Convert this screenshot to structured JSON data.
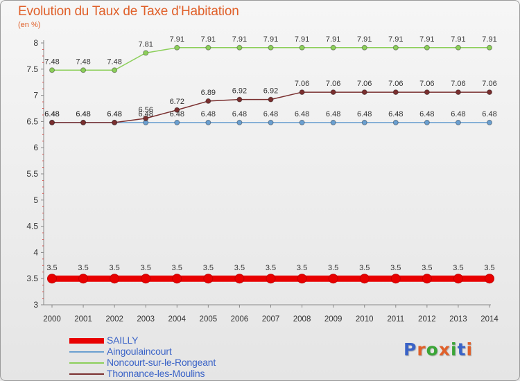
{
  "header": {
    "title": "Evolution du Taux de Taxe d'Habitation",
    "unit": "(en %)"
  },
  "logo": {
    "text": "Proxiti",
    "letter_colors": [
      "#3a63c7",
      "#e0602a",
      "#3aa537",
      "#e0602a",
      "#3aa537",
      "#3a63c7",
      "#e0602a"
    ]
  },
  "chart_data": {
    "type": "line",
    "title": "Evolution du Taux de Taxe d'Habitation",
    "ylabel": "(en %)",
    "xlabel": "",
    "x": [
      "2000",
      "2001",
      "2002",
      "2003",
      "2004",
      "2005",
      "2006",
      "2007",
      "2008",
      "2009",
      "2010",
      "2011",
      "2012",
      "2013",
      "2014"
    ],
    "ylim": [
      3,
      8
    ],
    "yticks": [
      "3",
      "3.5",
      "4",
      "4.5",
      "5",
      "5.5",
      "6",
      "6.5",
      "7",
      "7.5",
      "8"
    ],
    "grid": false,
    "legend_position": "bottom-left",
    "series": [
      {
        "name": "SAILLY",
        "color": "#e80000",
        "values": [
          3.5,
          3.5,
          3.5,
          3.5,
          3.5,
          3.5,
          3.5,
          3.5,
          3.5,
          3.5,
          3.5,
          3.5,
          3.5,
          3.5,
          3.5
        ],
        "labels": [
          "3.5",
          "3.5",
          "3.5",
          "3.5",
          "3.5",
          "3.5",
          "3.5",
          "3.5",
          "3.5",
          "3.5",
          "3.5",
          "3.5",
          "3.5",
          "3.5",
          "3.5"
        ]
      },
      {
        "name": "Aingoulaincourt",
        "color": "#6a9fd0",
        "values": [
          6.48,
          6.48,
          6.48,
          6.48,
          6.48,
          6.48,
          6.48,
          6.48,
          6.48,
          6.48,
          6.48,
          6.48,
          6.48,
          6.48,
          6.48
        ],
        "labels": [
          "6.48",
          "6.48",
          "6.48",
          "6.48",
          "6.48",
          "6.48",
          "6.48",
          "6.48",
          "6.48",
          "6.48",
          "6.48",
          "6.48",
          "6.48",
          "6.48",
          "6.48"
        ]
      },
      {
        "name": "Noncourt-sur-le-Rongeant",
        "color": "#8ccf5a",
        "values": [
          7.48,
          7.48,
          7.48,
          7.81,
          7.91,
          7.91,
          7.91,
          7.91,
          7.91,
          7.91,
          7.91,
          7.91,
          7.91,
          7.91,
          7.91
        ],
        "labels": [
          "7.48",
          "7.48",
          "7.48",
          "7.81",
          "7.91",
          "7.91",
          "7.91",
          "7.91",
          "7.91",
          "7.91",
          "7.91",
          "7.91",
          "7.91",
          "7.91",
          "7.91"
        ]
      },
      {
        "name": "Thonnance-les-Moulins",
        "color": "#7a2f2f",
        "values": [
          6.48,
          6.48,
          6.48,
          6.56,
          6.72,
          6.89,
          6.92,
          6.92,
          7.06,
          7.06,
          7.06,
          7.06,
          7.06,
          7.06,
          7.06
        ],
        "labels": [
          "6.48",
          "6.48",
          "6.48",
          "6.56",
          "6.72",
          "6.89",
          "6.92",
          "6.92",
          "7.06",
          "7.06",
          "7.06",
          "7.06",
          "7.06",
          "7.06",
          "7.06"
        ]
      }
    ]
  }
}
